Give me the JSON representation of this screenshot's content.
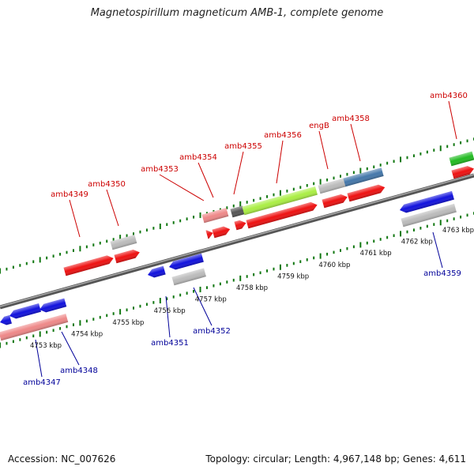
{
  "title": "Magnetospirillum magneticum AMB-1, complete genome",
  "footer": {
    "accession": "Accession: NC_007626",
    "summary": "Topology: circular; Length: 4,967,148 bp; Genes: 4,611"
  },
  "colors": {
    "red_label": "#cc0000",
    "blue_label": "#000099",
    "red_gene": "#ee1111",
    "blue_gene": "#1111dd",
    "pink_gene": "#ee8888",
    "gray_gene": "#bbbbbb",
    "lime_gene": "#aaee44",
    "steel_gene": "#4477aa",
    "green_gene": "#22bb22",
    "dark_gene": "#555555",
    "tick": "#117711"
  },
  "kbp_labels": [
    "4753 kbp",
    "4754 kbp",
    "4755 kbp",
    "4756 kbp",
    "4757 kbp",
    "4758 kbp",
    "4759 kbp",
    "4760 kbp",
    "4761 kbp",
    "4762 kbp",
    "4763 kbp"
  ],
  "gene_labels_top": [
    "amb4349",
    "amb4350",
    "amb4353",
    "amb4354",
    "amb4355",
    "amb4356",
    "engB",
    "amb4358",
    "amb4360"
  ],
  "gene_labels_bottom": [
    "amb4347",
    "amb4348",
    "amb4351",
    "amb4352",
    "amb4359"
  ]
}
